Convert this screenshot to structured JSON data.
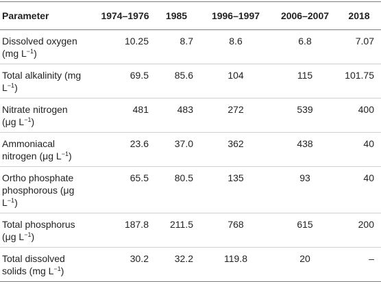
{
  "headers": [
    "Parameter",
    "1974–1976",
    "1985",
    "1996–1997",
    "2006–2007",
    "2018"
  ],
  "rows": [
    {
      "p1": "Dissolved oxygen",
      "p2": "(mg L",
      "unit_sup": "−1",
      "p3": ")",
      "v": [
        "10.25",
        "8.7",
        "8.6",
        "6.8",
        "7.07"
      ]
    },
    {
      "p1": "Total alkalinity (mg",
      "p2": "L",
      "unit_sup": "−1",
      "p3": ")",
      "v": [
        "69.5",
        "85.6",
        "104",
        "115",
        "101.75"
      ]
    },
    {
      "p1": "Nitrate nitrogen",
      "p2": "(μg L",
      "unit_sup": "−1",
      "p3": ")",
      "v": [
        "481",
        "483",
        "272",
        "539",
        "400"
      ]
    },
    {
      "p1": "Ammoniacal",
      "p2": "nitrogen (μg L",
      "unit_sup": "−1",
      "p3": ")",
      "v": [
        "23.6",
        "37.0",
        "362",
        "438",
        "40"
      ]
    },
    {
      "p1": "Ortho phosphate",
      "p2": "phosphorous (μg",
      "p3": "L",
      "unit_sup": "−1",
      "p4": ")",
      "v": [
        "65.5",
        "80.5",
        "135",
        "93",
        "40"
      ]
    },
    {
      "p1": "Total phosphorus",
      "p2": "(μg L",
      "unit_sup": "−1",
      "p3": ")",
      "v": [
        "187.8",
        "211.5",
        "768",
        "615",
        "200"
      ]
    },
    {
      "p1": "Total dissolved",
      "p2": "solids (mg L",
      "unit_sup": "−1",
      "p3": ")",
      "v": [
        "30.2",
        "32.2",
        "119.8",
        "20",
        "–"
      ]
    }
  ]
}
